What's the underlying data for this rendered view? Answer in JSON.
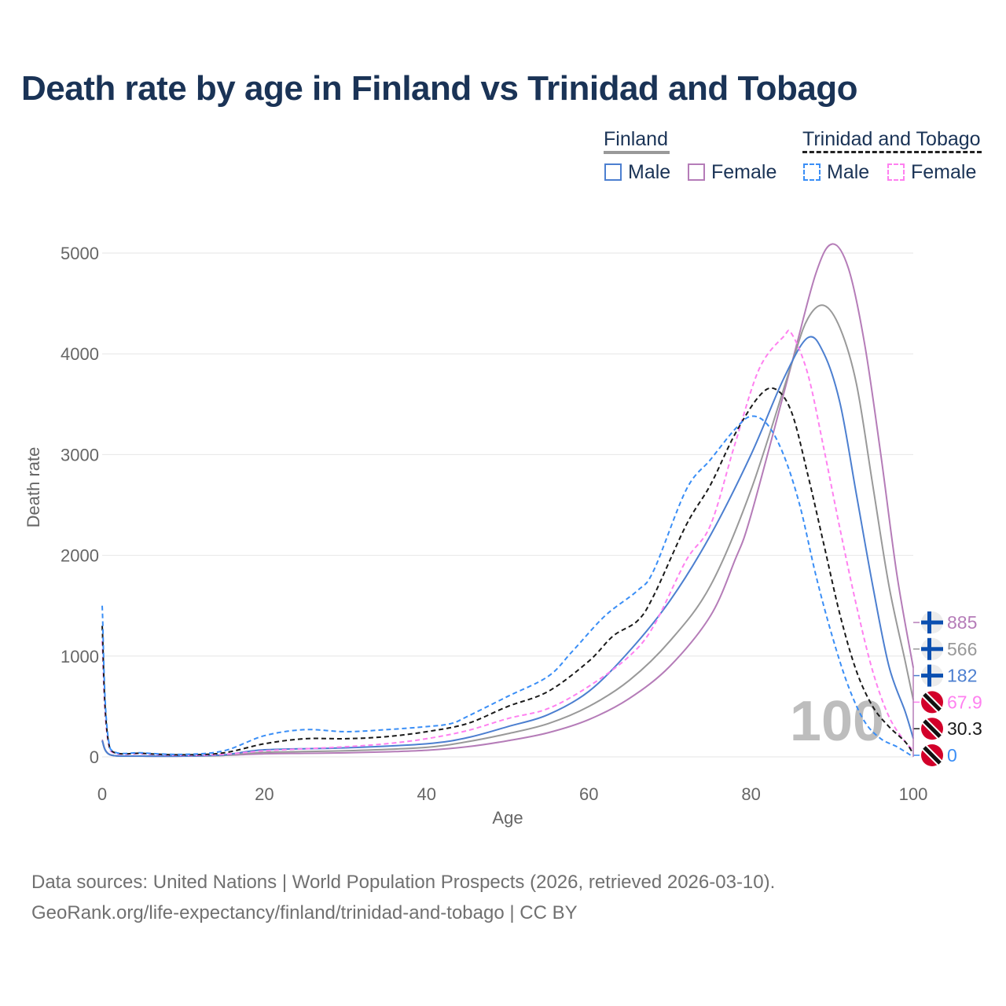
{
  "title": "Death rate by age in Finland vs Trinidad and Tobago",
  "legend": {
    "group1": "Finland",
    "group2": "Trinidad and Tobago",
    "male": "Male",
    "female": "Female"
  },
  "source_line1": "Data sources: United Nations | World Population Prospects (2026, retrieved 2026-03-10).",
  "source_line2": "GeoRank.org/life-expectancy/finland/trinidad-and-tobago | CC BY",
  "chart_data": {
    "type": "line",
    "xlabel": "Age",
    "ylabel": "Death rate",
    "xlim": [
      0,
      100
    ],
    "ylim": [
      0,
      5000
    ],
    "xticks": [
      "0",
      "20",
      "40",
      "60",
      "80",
      "100"
    ],
    "yticks": [
      "0",
      "1000",
      "2000",
      "3000",
      "4000",
      "5000"
    ],
    "highlight_label": "100",
    "series": [
      {
        "name": "Finland Female",
        "color": "#b57cb8",
        "dash": false,
        "end_label": "885",
        "flag": "finland",
        "x": [
          0,
          1,
          5,
          10,
          15,
          20,
          25,
          30,
          35,
          40,
          45,
          50,
          55,
          60,
          65,
          70,
          75,
          78,
          80,
          85,
          88,
          90,
          92,
          94,
          96,
          98,
          100
        ],
        "y": [
          170,
          20,
          8,
          8,
          15,
          30,
          35,
          40,
          50,
          65,
          100,
          160,
          240,
          370,
          580,
          900,
          1400,
          1950,
          2400,
          3900,
          4800,
          5090,
          4850,
          4100,
          3000,
          1800,
          885
        ]
      },
      {
        "name": "Finland",
        "color": "#999999",
        "dash": false,
        "end_label": "566",
        "flag": "finland",
        "x": [
          0,
          1,
          5,
          10,
          15,
          20,
          30,
          40,
          45,
          50,
          55,
          60,
          65,
          70,
          75,
          80,
          85,
          87,
          89,
          91,
          93,
          95,
          97,
          99,
          100
        ],
        "y": [
          160,
          20,
          8,
          8,
          15,
          45,
          60,
          95,
          150,
          230,
          330,
          500,
          760,
          1150,
          1700,
          2650,
          3900,
          4350,
          4480,
          4250,
          3700,
          2700,
          1700,
          950,
          566
        ]
      },
      {
        "name": "Finland Male",
        "color": "#4c7fd0",
        "dash": false,
        "end_label": "182",
        "flag": "finland",
        "x": [
          0,
          1,
          5,
          10,
          15,
          20,
          30,
          40,
          45,
          50,
          55,
          60,
          65,
          70,
          75,
          80,
          84,
          87,
          89,
          91,
          93,
          95,
          97,
          99,
          100
        ],
        "y": [
          160,
          20,
          8,
          8,
          20,
          70,
          90,
          130,
          190,
          300,
          420,
          650,
          1050,
          1550,
          2200,
          3000,
          3750,
          4160,
          4000,
          3500,
          2600,
          1700,
          900,
          450,
          182
        ]
      },
      {
        "name": "Trinidad and Tobago Female",
        "color": "#ff80f0",
        "dash": true,
        "end_label": "67.9",
        "flag": "trinidad",
        "x": [
          0,
          1,
          5,
          10,
          15,
          20,
          25,
          30,
          35,
          40,
          45,
          50,
          55,
          60,
          65,
          68,
          72,
          75,
          78,
          81,
          84,
          85,
          87,
          89,
          91,
          93,
          95,
          97,
          99,
          100
        ],
        "y": [
          1150,
          60,
          30,
          15,
          25,
          60,
          80,
          100,
          130,
          180,
          260,
          380,
          480,
          700,
          1000,
          1300,
          1950,
          2300,
          3100,
          3850,
          4170,
          4200,
          3800,
          3050,
          2250,
          1500,
          850,
          400,
          150,
          67.9
        ]
      },
      {
        "name": "Trinidad and Tobago",
        "color": "#1a1a1a",
        "dash": true,
        "end_label": "30.3",
        "flag": "trinidad",
        "x": [
          0,
          1,
          5,
          10,
          15,
          20,
          25,
          30,
          35,
          40,
          45,
          50,
          55,
          60,
          63,
          66,
          68,
          72,
          75,
          78,
          81,
          83,
          85,
          87,
          89,
          91,
          93,
          95,
          97,
          99,
          100
        ],
        "y": [
          1300,
          70,
          35,
          20,
          40,
          130,
          180,
          180,
          200,
          250,
          330,
          500,
          650,
          950,
          1200,
          1350,
          1600,
          2300,
          2700,
          3200,
          3580,
          3650,
          3420,
          2800,
          2100,
          1400,
          850,
          500,
          300,
          150,
          30.3
        ]
      },
      {
        "name": "Trinidad and Tobago Male",
        "color": "#3a8ef6",
        "dash": true,
        "end_label": "0",
        "flag": "trinidad",
        "x": [
          0,
          1,
          5,
          10,
          15,
          20,
          25,
          30,
          35,
          40,
          43,
          45,
          50,
          55,
          58,
          62,
          66,
          68,
          72,
          75,
          78,
          80,
          82,
          84,
          86,
          88,
          90,
          92,
          94,
          96,
          98,
          100
        ],
        "y": [
          1500,
          80,
          40,
          25,
          60,
          210,
          270,
          250,
          270,
          300,
          330,
          400,
          600,
          800,
          1050,
          1400,
          1650,
          1850,
          2650,
          2950,
          3250,
          3380,
          3300,
          3000,
          2500,
          1800,
          1200,
          700,
          350,
          180,
          100,
          0
        ]
      }
    ]
  }
}
